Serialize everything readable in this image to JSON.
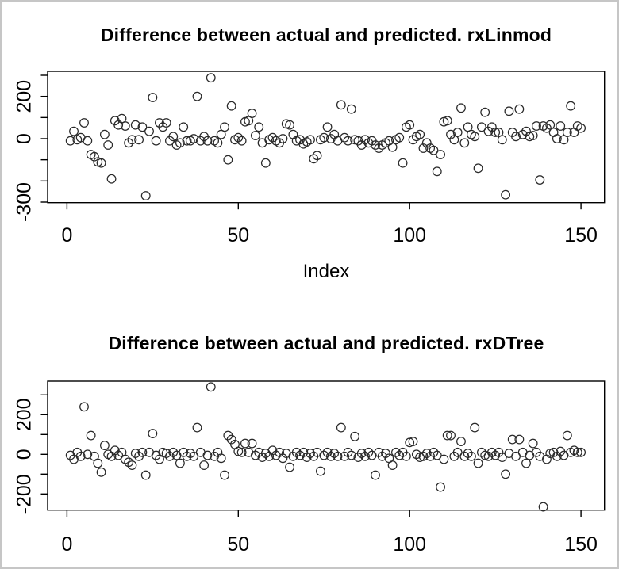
{
  "window": {
    "background_color": "#ffffff",
    "border_color": "#c6c6c6"
  },
  "colors": {
    "axis": "#000000",
    "text": "#000000",
    "point_stroke": "#2a2a2a"
  },
  "chart_data": [
    {
      "type": "scatter",
      "title": "Difference between actual and predicted. rxLinmod",
      "xlabel": "Index",
      "marker": "open-circle",
      "x_start_index": 1,
      "xlim": [
        -5,
        156
      ],
      "ylim": [
        -302,
        319
      ],
      "grid": "off",
      "xticks": [
        {
          "v": 0,
          "label": "0"
        },
        {
          "v": 50,
          "label": "50"
        },
        {
          "v": 100,
          "label": "100"
        },
        {
          "v": 150,
          "label": "150"
        }
      ],
      "yticks": [
        {
          "v": 300,
          "label": ""
        },
        {
          "v": 200,
          "label": "200"
        },
        {
          "v": 100,
          "label": ""
        },
        {
          "v": 0,
          "label": "0"
        },
        {
          "v": -100,
          "label": ""
        },
        {
          "v": -200,
          "label": ""
        },
        {
          "v": -300,
          "label": "-300"
        }
      ],
      "values": [
        -10,
        35,
        -5,
        5,
        75,
        -10,
        -75,
        -85,
        -110,
        -115,
        20,
        -30,
        -190,
        85,
        65,
        95,
        60,
        -20,
        -5,
        65,
        -5,
        55,
        -270,
        35,
        195,
        -10,
        75,
        55,
        75,
        -10,
        10,
        -30,
        -20,
        55,
        -10,
        -10,
        0,
        200,
        -10,
        10,
        -10,
        288,
        -10,
        -20,
        20,
        55,
        -100,
        155,
        -5,
        5,
        -10,
        80,
        85,
        120,
        15,
        55,
        -20,
        -115,
        -5,
        5,
        -10,
        -20,
        0,
        70,
        65,
        20,
        -10,
        -5,
        -25,
        -15,
        -5,
        -95,
        -80,
        -5,
        5,
        55,
        0,
        20,
        -10,
        160,
        5,
        -10,
        140,
        -5,
        -10,
        -30,
        -5,
        -20,
        -10,
        -30,
        -45,
        -30,
        -20,
        -10,
        -40,
        -5,
        5,
        -115,
        55,
        65,
        -5,
        10,
        20,
        -45,
        -20,
        -45,
        -55,
        -155,
        -75,
        80,
        85,
        20,
        -5,
        30,
        145,
        -20,
        55,
        20,
        10,
        -140,
        55,
        125,
        35,
        55,
        30,
        30,
        -5,
        -265,
        130,
        30,
        10,
        140,
        20,
        35,
        10,
        15,
        60,
        -195,
        60,
        50,
        65,
        30,
        0,
        60,
        -5,
        30,
        155,
        30,
        60,
        50
      ]
    },
    {
      "type": "scatter",
      "title": "Difference between actual and predicted. rxDTree",
      "xlabel": "",
      "marker": "open-circle",
      "x_start_index": 1,
      "xlim": [
        -5,
        156
      ],
      "ylim": [
        -282,
        369
      ],
      "grid": "off",
      "xticks": [
        {
          "v": 0,
          "label": "0"
        },
        {
          "v": 50,
          "label": "50"
        },
        {
          "v": 100,
          "label": "100"
        },
        {
          "v": 150,
          "label": "150"
        }
      ],
      "yticks": [
        {
          "v": 300,
          "label": ""
        },
        {
          "v": 200,
          "label": "200"
        },
        {
          "v": 100,
          "label": ""
        },
        {
          "v": 0,
          "label": "0"
        },
        {
          "v": -100,
          "label": ""
        },
        {
          "v": -200,
          "label": "-200"
        }
      ],
      "values": [
        -5,
        -25,
        10,
        -10,
        240,
        0,
        95,
        -10,
        -45,
        -90,
        45,
        0,
        -10,
        20,
        -5,
        10,
        -25,
        -40,
        -55,
        5,
        -10,
        10,
        -105,
        10,
        105,
        -5,
        -25,
        10,
        5,
        -10,
        10,
        -5,
        -45,
        10,
        -10,
        5,
        -10,
        135,
        10,
        -55,
        -5,
        340,
        -10,
        10,
        -20,
        -105,
        95,
        75,
        50,
        15,
        10,
        55,
        10,
        55,
        -5,
        10,
        -15,
        5,
        -10,
        20,
        -5,
        10,
        -20,
        5,
        -65,
        -10,
        10,
        -5,
        10,
        -15,
        5,
        -10,
        10,
        -85,
        -5,
        10,
        -10,
        5,
        -10,
        135,
        -10,
        10,
        -5,
        90,
        -15,
        5,
        -10,
        10,
        -5,
        -105,
        10,
        -10,
        5,
        -20,
        -55,
        10,
        -5,
        10,
        -10,
        60,
        65,
        0,
        -15,
        -10,
        5,
        -10,
        10,
        -5,
        -165,
        -25,
        95,
        95,
        -10,
        10,
        65,
        -10,
        5,
        -10,
        135,
        -45,
        10,
        -5,
        -10,
        10,
        -5,
        10,
        -15,
        -100,
        5,
        75,
        -10,
        75,
        10,
        -45,
        -5,
        55,
        10,
        -10,
        -265,
        -25,
        5,
        10,
        -10,
        15,
        -5,
        95,
        10,
        20,
        10,
        10
      ]
    }
  ]
}
